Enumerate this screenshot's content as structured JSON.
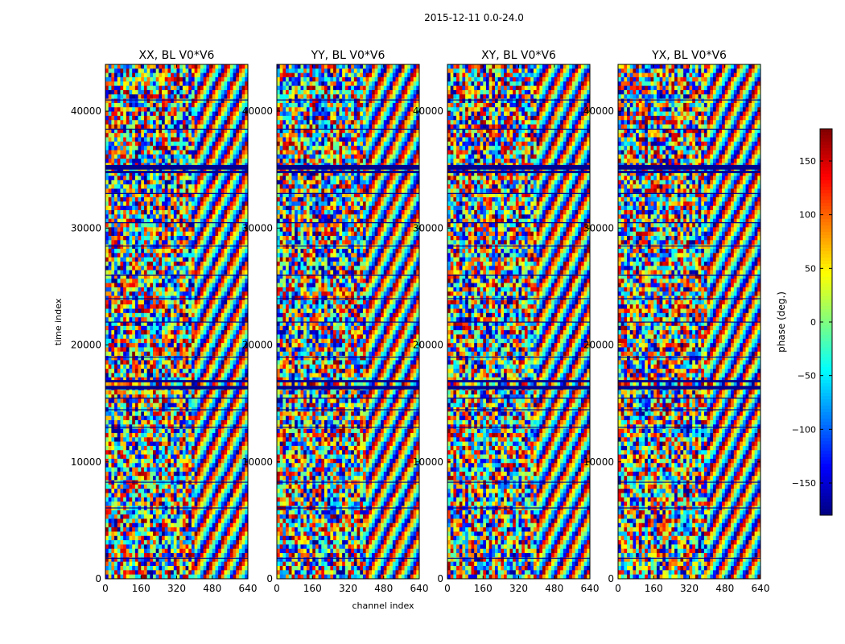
{
  "figure": {
    "suptitle": "2015-12-11 0.0-24.0"
  },
  "chart_data": {
    "type": "heatmap",
    "xlabel": "channel index",
    "ylabel": "time index",
    "xlim": [
      0,
      640
    ],
    "ylim": [
      0,
      44000
    ],
    "xticks": [
      0,
      160,
      320,
      480,
      640
    ],
    "yticks": [
      0,
      10000,
      20000,
      30000,
      40000
    ],
    "panels": [
      {
        "title": "XX, BL V0*V6"
      },
      {
        "title": "YY, BL V0*V6"
      },
      {
        "title": "XY, BL V0*V6"
      },
      {
        "title": "YX, BL V0*V6"
      }
    ],
    "colorbar": {
      "label": "phase (deg.)",
      "range": [
        -180,
        180
      ],
      "ticks": [
        -150,
        -100,
        -50,
        0,
        50,
        100,
        150
      ],
      "colormap": "jet"
    }
  },
  "colors": {
    "flagged": "#00008f",
    "axis": "#000000",
    "background": "#ffffff"
  }
}
